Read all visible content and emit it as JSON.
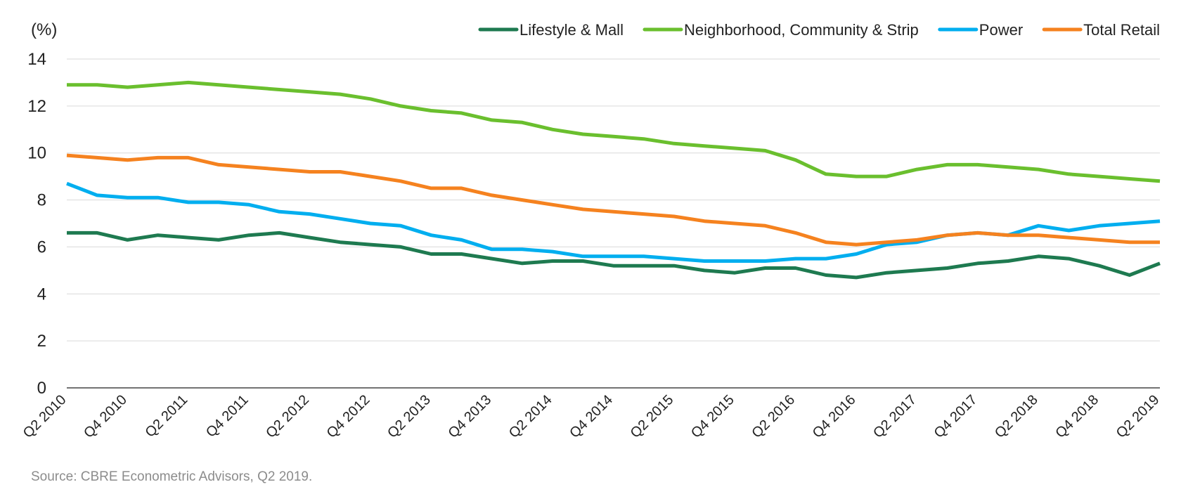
{
  "source_note": "Source: CBRE Econometric Advisors, Q2 2019.",
  "chart_data": {
    "type": "line",
    "title": "",
    "xlabel": "",
    "ylabel": "(%)",
    "ylim": [
      0,
      14
    ],
    "yticks": [
      0,
      2,
      4,
      6,
      8,
      10,
      12,
      14
    ],
    "grid": "horizontal",
    "legend_position": "top-right",
    "categories": [
      "Q2 2010",
      "Q3 2010",
      "Q4 2010",
      "Q1 2011",
      "Q2 2011",
      "Q3 2011",
      "Q4 2011",
      "Q1 2012",
      "Q2 2012",
      "Q3 2012",
      "Q4 2012",
      "Q1 2013",
      "Q2 2013",
      "Q3 2013",
      "Q4 2013",
      "Q1 2014",
      "Q2 2014",
      "Q3 2014",
      "Q4 2014",
      "Q1 2015",
      "Q2 2015",
      "Q3 2015",
      "Q4 2015",
      "Q1 2016",
      "Q2 2016",
      "Q3 2016",
      "Q4 2016",
      "Q1 2017",
      "Q2 2017",
      "Q3 2017",
      "Q4 2017",
      "Q1 2018",
      "Q2 2018",
      "Q3 2018",
      "Q4 2018",
      "Q1 2019",
      "Q2 2019"
    ],
    "tick_labels": [
      "Q2 2010",
      "Q4 2010",
      "Q2 2011",
      "Q4 2011",
      "Q2 2012",
      "Q4 2012",
      "Q2 2013",
      "Q4 2013",
      "Q2 2014",
      "Q4 2014",
      "Q2 2015",
      "Q4 2015",
      "Q2 2016",
      "Q4 2016",
      "Q2 2017",
      "Q4 2017",
      "Q2 2018",
      "Q4 2018",
      "Q2 2019"
    ],
    "series": [
      {
        "name": "Lifestyle & Mall",
        "color": "#1e7a50",
        "values": [
          6.6,
          6.6,
          6.3,
          6.5,
          6.4,
          6.3,
          6.5,
          6.6,
          6.4,
          6.2,
          6.1,
          6.0,
          5.7,
          5.7,
          5.5,
          5.3,
          5.4,
          5.4,
          5.2,
          5.2,
          5.2,
          5.0,
          4.9,
          5.1,
          5.1,
          4.8,
          4.7,
          4.9,
          5.0,
          5.1,
          5.3,
          5.4,
          5.6,
          5.5,
          5.2,
          4.8,
          5.3
        ]
      },
      {
        "name": "Neighborhood, Community & Strip",
        "color": "#6abf2e",
        "values": [
          12.9,
          12.9,
          12.8,
          12.9,
          13.0,
          12.9,
          12.8,
          12.7,
          12.6,
          12.5,
          12.3,
          12.0,
          11.8,
          11.7,
          11.4,
          11.3,
          11.0,
          10.8,
          10.7,
          10.6,
          10.4,
          10.3,
          10.2,
          10.1,
          9.7,
          9.1,
          9.0,
          9.0,
          9.3,
          9.5,
          9.5,
          9.4,
          9.3,
          9.1,
          9.0,
          8.9,
          8.8
        ]
      },
      {
        "name": "Power",
        "color": "#00aeef",
        "values": [
          8.7,
          8.2,
          8.1,
          8.1,
          7.9,
          7.9,
          7.8,
          7.5,
          7.4,
          7.2,
          7.0,
          6.9,
          6.5,
          6.3,
          5.9,
          5.9,
          5.8,
          5.6,
          5.6,
          5.6,
          5.5,
          5.4,
          5.4,
          5.4,
          5.5,
          5.5,
          5.7,
          6.1,
          6.2,
          6.5,
          6.6,
          6.5,
          6.9,
          6.7,
          6.9,
          7.0,
          7.1
        ]
      },
      {
        "name": "Total Retail",
        "color": "#f5821f",
        "values": [
          9.9,
          9.8,
          9.7,
          9.8,
          9.8,
          9.5,
          9.4,
          9.3,
          9.2,
          9.2,
          9.0,
          8.8,
          8.5,
          8.5,
          8.2,
          8.0,
          7.8,
          7.6,
          7.5,
          7.4,
          7.3,
          7.1,
          7.0,
          6.9,
          6.6,
          6.2,
          6.1,
          6.2,
          6.3,
          6.5,
          6.6,
          6.5,
          6.5,
          6.4,
          6.3,
          6.2,
          6.2
        ]
      }
    ]
  }
}
